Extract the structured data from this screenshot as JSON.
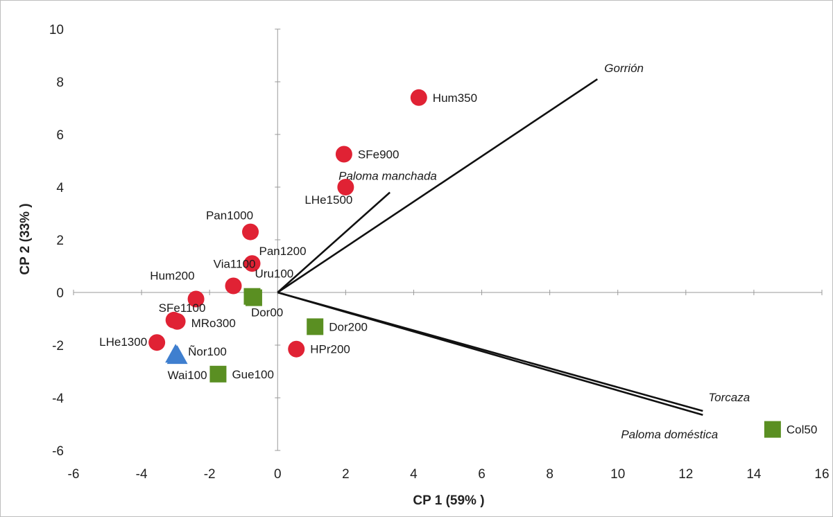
{
  "chart_data": {
    "type": "scatter",
    "xlabel": "CP 1 (59% )",
    "ylabel": "CP 2 (33% )",
    "xlim": [
      -6,
      16
    ],
    "ylim": [
      -6,
      10
    ],
    "x_ticks": [
      -6,
      -4,
      -2,
      0,
      2,
      4,
      6,
      8,
      10,
      12,
      14,
      16
    ],
    "y_ticks": [
      -6,
      -4,
      -2,
      0,
      2,
      4,
      6,
      8,
      10
    ],
    "grid": false,
    "colors": {
      "circle": "#e02234",
      "square": "#5a8f22",
      "triangle": "#3f7fcf",
      "vector": "#111111"
    },
    "points": [
      {
        "label": "Hum350",
        "x": 4.15,
        "y": 7.4,
        "shape": "circle"
      },
      {
        "label": "SFe900",
        "x": 1.95,
        "y": 5.25,
        "shape": "circle"
      },
      {
        "label": "LHe1500",
        "x": 2.0,
        "y": 4.0,
        "shape": "circle"
      },
      {
        "label": "Pan1000",
        "x": -0.8,
        "y": 2.3,
        "shape": "circle"
      },
      {
        "label": "Pan1200",
        "x": -0.75,
        "y": 1.1,
        "shape": "circle"
      },
      {
        "label": "Via1100",
        "x": -1.3,
        "y": 0.25,
        "shape": "circle"
      },
      {
        "label": "Hum200",
        "x": -2.4,
        "y": -0.25,
        "shape": "circle"
      },
      {
        "label": "SFe1100",
        "x": -3.05,
        "y": -1.05,
        "shape": "circle"
      },
      {
        "label": "MRo300",
        "x": -2.95,
        "y": -1.1,
        "shape": "circle"
      },
      {
        "label": "LHe1300",
        "x": -3.55,
        "y": -1.9,
        "shape": "circle"
      },
      {
        "label": "HPr200",
        "x": 0.55,
        "y": -2.15,
        "shape": "circle"
      },
      {
        "label": "Uru100",
        "x": -0.75,
        "y": -0.15,
        "shape": "square"
      },
      {
        "label": "Dor00",
        "x": -0.7,
        "y": -0.2,
        "shape": "square"
      },
      {
        "label": "Dor200",
        "x": 1.1,
        "y": -1.3,
        "shape": "square"
      },
      {
        "label": "Gue100",
        "x": -1.75,
        "y": -3.1,
        "shape": "square"
      },
      {
        "label": "Col50",
        "x": 14.55,
        "y": -5.2,
        "shape": "square"
      },
      {
        "label": "Ñor100",
        "x": -3.0,
        "y": -2.4,
        "shape": "triangle"
      },
      {
        "label": "Wai100",
        "x": -2.95,
        "y": -2.45,
        "shape": "triangle"
      }
    ],
    "vectors": [
      {
        "label": "Gorrión",
        "x": 9.4,
        "y": 8.1
      },
      {
        "label": "Paloma manchada",
        "x": 3.3,
        "y": 3.8
      },
      {
        "label": "Torcaza",
        "x": 12.5,
        "y": -4.5
      },
      {
        "label": "Paloma doméstica",
        "x": 12.5,
        "y": -4.65
      }
    ]
  }
}
